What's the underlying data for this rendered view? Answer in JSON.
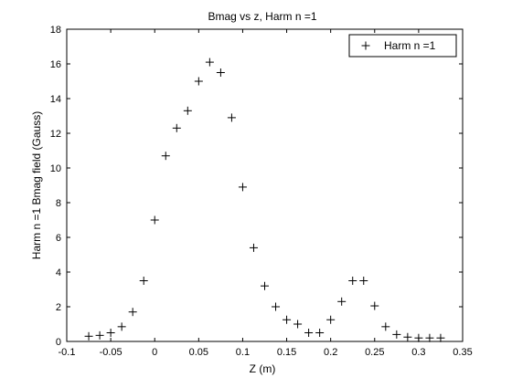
{
  "chart_data": {
    "type": "scatter",
    "title": "Bmag vs z, Harm n =1",
    "xlabel": "Z (m)",
    "ylabel": "Harm n =1 Bmag field (Gauss)",
    "xlim": [
      -0.1,
      0.35
    ],
    "ylim": [
      0,
      18
    ],
    "xticks": [
      -0.1,
      -0.05,
      0,
      0.05,
      0.1,
      0.15,
      0.2,
      0.25,
      0.3,
      0.35
    ],
    "xtick_labels": [
      "-0.1",
      "-0.05",
      "0",
      "0.05",
      "0.1",
      "0.15",
      "0.2",
      "0.25",
      "0.3",
      "0.35"
    ],
    "yticks": [
      0,
      2,
      4,
      6,
      8,
      10,
      12,
      14,
      16,
      18
    ],
    "ytick_labels": [
      "0",
      "2",
      "4",
      "6",
      "8",
      "10",
      "12",
      "14",
      "16",
      "18"
    ],
    "grid": false,
    "marker": "+",
    "marker_color": "#000000",
    "legend_position": "top-right",
    "series": [
      {
        "name": "Harm n =1",
        "x": [
          -0.075,
          -0.0625,
          -0.05,
          -0.0375,
          -0.025,
          -0.0125,
          0.0,
          0.0125,
          0.025,
          0.0375,
          0.05,
          0.0625,
          0.075,
          0.0875,
          0.1,
          0.1125,
          0.125,
          0.1375,
          0.15,
          0.1625,
          0.175,
          0.1875,
          0.2,
          0.2125,
          0.225,
          0.2375,
          0.25,
          0.2625,
          0.275,
          0.2875,
          0.3,
          0.3125,
          0.325
        ],
        "y": [
          0.3,
          0.35,
          0.5,
          0.85,
          1.7,
          3.5,
          7.0,
          10.7,
          12.3,
          13.3,
          15.0,
          16.1,
          15.5,
          12.9,
          8.9,
          5.4,
          3.2,
          2.0,
          1.25,
          1.0,
          0.5,
          0.5,
          1.25,
          2.3,
          3.5,
          3.5,
          2.05,
          0.85,
          0.4,
          0.25,
          0.2,
          0.2,
          0.2
        ]
      }
    ]
  }
}
